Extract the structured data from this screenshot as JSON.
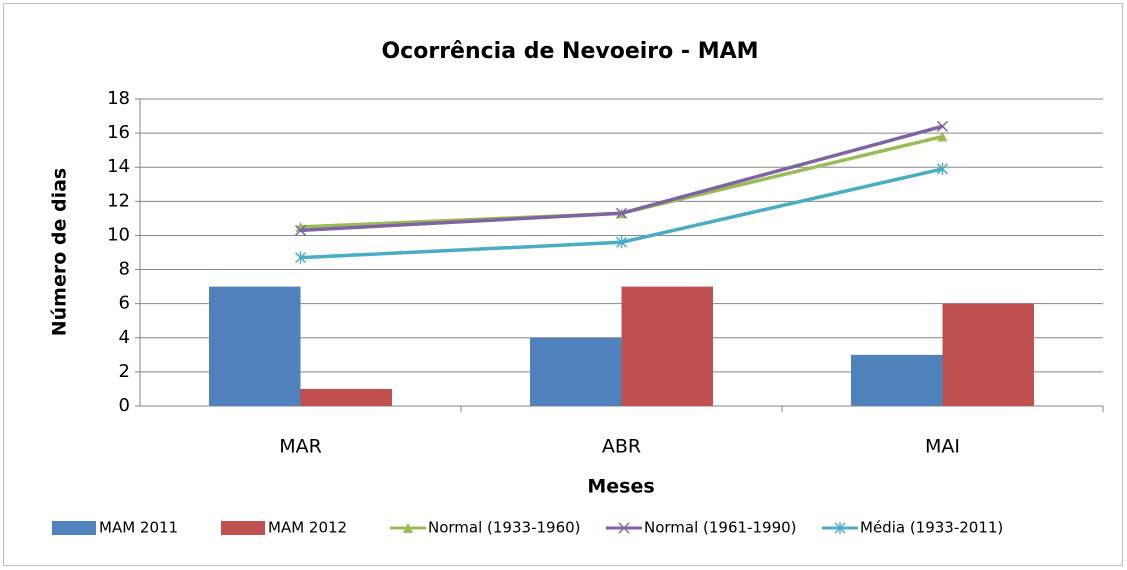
{
  "chart_data": {
    "type": "combo",
    "title": "Ocorrência de Nevoeiro - MAM",
    "x_label": "Meses",
    "y_label": "Número de dias",
    "categories": [
      "MAR",
      "ABR",
      "MAI"
    ],
    "series": [
      {
        "name": "MAM 2011",
        "type": "bar",
        "color": "#4f81bd",
        "values": [
          7,
          4,
          3
        ]
      },
      {
        "name": "MAM 2012",
        "type": "bar",
        "color": "#c0504d",
        "values": [
          1,
          7,
          6
        ]
      },
      {
        "name": "Normal (1933-1960)",
        "type": "line",
        "marker": "triangle",
        "color": "#9bbb59",
        "values": [
          10.5,
          11.3,
          15.8
        ]
      },
      {
        "name": "Normal (1961-1990)",
        "type": "line",
        "marker": "x",
        "color": "#8064a2",
        "values": [
          10.3,
          11.3,
          16.4
        ]
      },
      {
        "name": "Média (1933-2011)",
        "type": "line",
        "marker": "star",
        "color": "#4bacc6",
        "values": [
          8.7,
          9.6,
          13.9
        ]
      }
    ],
    "ylim": [
      0,
      18
    ],
    "yticks": [
      0,
      2,
      4,
      6,
      8,
      10,
      12,
      14,
      16,
      18
    ],
    "grid": true,
    "legend": "bottom"
  }
}
